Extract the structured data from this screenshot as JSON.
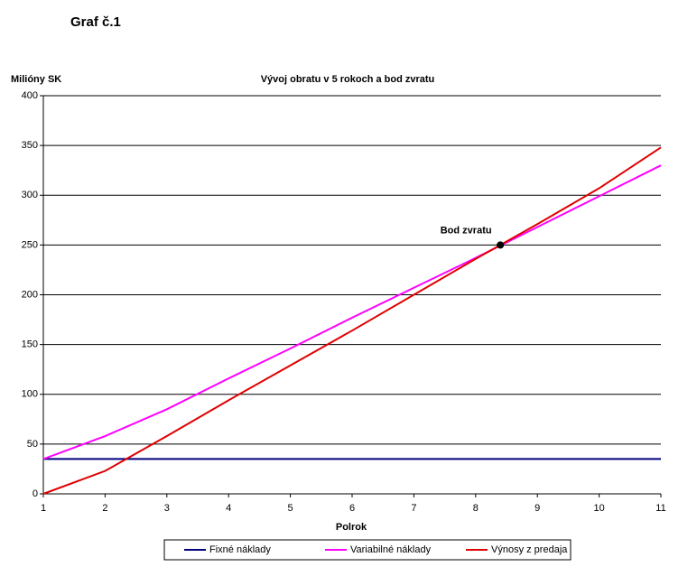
{
  "header": {
    "title": "Graf č.1"
  },
  "chart_data": {
    "type": "line",
    "title": "Vývoj obratu v 5 rokoch a bod zvratu",
    "y_label": "Milióny SK",
    "x_label": "Polrok",
    "x": [
      1,
      2,
      3,
      4,
      5,
      6,
      7,
      8,
      9,
      10,
      11
    ],
    "xlim": [
      1,
      11
    ],
    "xticks": [
      1,
      2,
      3,
      4,
      5,
      6,
      7,
      8,
      9,
      10,
      11
    ],
    "ylim": [
      0,
      400
    ],
    "yticks": [
      0,
      50,
      100,
      150,
      200,
      250,
      300,
      350,
      400
    ],
    "grid": true,
    "legend": "bottom",
    "series": [
      {
        "name": "Fixné náklady",
        "color": "#000080",
        "values": [
          35,
          35,
          35,
          35,
          35,
          35,
          35,
          35,
          35,
          35,
          35
        ]
      },
      {
        "name": "Variabilné náklady",
        "color": "#ff00ff",
        "values": [
          35,
          58,
          85,
          116,
          146,
          177,
          207,
          237,
          268,
          299,
          330
        ]
      },
      {
        "name": "Výnosy z predaja",
        "color": "#e00000",
        "values": [
          0,
          23,
          58,
          94,
          129,
          164,
          200,
          236,
          271,
          307,
          348
        ]
      }
    ],
    "annotation": {
      "label": "Bod zvratu",
      "x": 8.4,
      "y": 250
    }
  }
}
